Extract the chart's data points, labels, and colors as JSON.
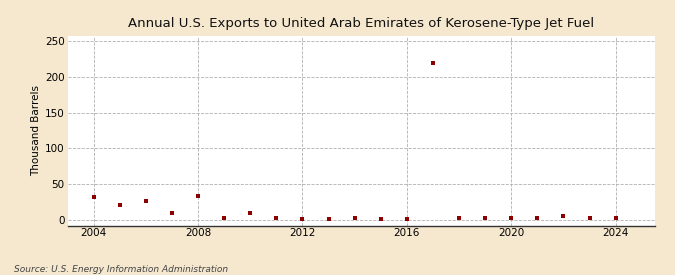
{
  "title": "Annual U.S. Exports to United Arab Emirates of Kerosene-Type Jet Fuel",
  "ylabel": "Thousand Barrels",
  "source": "Source: U.S. Energy Information Administration",
  "background_color": "#f5e8ce",
  "plot_background_color": "#ffffff",
  "marker_color": "#8b0000",
  "grid_color": "#b0b0b0",
  "xlim": [
    2003.0,
    2025.5
  ],
  "ylim": [
    -8,
    258
  ],
  "yticks": [
    0,
    50,
    100,
    150,
    200,
    250
  ],
  "xticks": [
    2004,
    2008,
    2012,
    2016,
    2020,
    2024
  ],
  "data_years": [
    2004,
    2005,
    2006,
    2007,
    2008,
    2009,
    2010,
    2011,
    2012,
    2013,
    2014,
    2015,
    2016,
    2017,
    2018,
    2019,
    2020,
    2021,
    2022,
    2023,
    2024
  ],
  "data_values": [
    32,
    21,
    27,
    10,
    33,
    2,
    10,
    2,
    1,
    1,
    2,
    1,
    1,
    220,
    3,
    3,
    3,
    3,
    5,
    2,
    2
  ]
}
